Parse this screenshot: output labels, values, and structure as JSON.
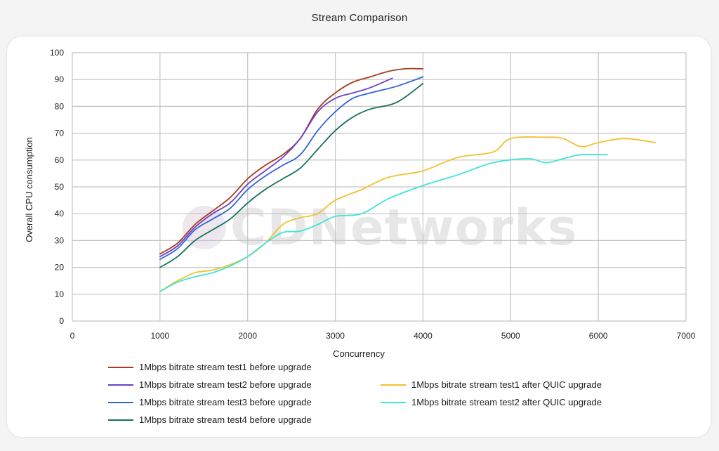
{
  "chart_data": {
    "type": "line",
    "title": "Stream Comparison",
    "xlabel": "Concurrency",
    "ylabel": "Overall CPU consumption",
    "xlim": [
      0,
      7000
    ],
    "ylim": [
      0,
      100
    ],
    "x_ticks": [
      0,
      1000,
      2000,
      3000,
      4000,
      5000,
      6000,
      7000
    ],
    "y_ticks": [
      0,
      10,
      20,
      30,
      40,
      50,
      60,
      70,
      80,
      90,
      100
    ],
    "grid": true,
    "legend_position": "bottom",
    "watermark": "CDNetworks",
    "series": [
      {
        "name": "1Mbps bitrate stream test1 before upgrade",
        "color": "#a83a1e",
        "x": [
          1000,
          1200,
          1400,
          1600,
          1800,
          2000,
          2200,
          2400,
          2600,
          2800,
          3000,
          3200,
          3400,
          3600,
          3800,
          4000
        ],
        "y": [
          25,
          29,
          36,
          41,
          46,
          53,
          58,
          62,
          68,
          79,
          85,
          89,
          91,
          93,
          94,
          94
        ]
      },
      {
        "name": "1Mbps bitrate stream test2 before upgrade",
        "color": "#6b3fc9",
        "x": [
          1000,
          1200,
          1400,
          1600,
          1800,
          2000,
          2200,
          2400,
          2600,
          2800,
          3000,
          3200,
          3400,
          3650
        ],
        "y": [
          24,
          28,
          35,
          40,
          44,
          51,
          56,
          61,
          68,
          78,
          83,
          85,
          87,
          90.5
        ]
      },
      {
        "name": "1Mbps bitrate stream test3 before upgrade",
        "color": "#2f63d8",
        "x": [
          1000,
          1200,
          1400,
          1600,
          1800,
          2000,
          2200,
          2400,
          2600,
          2800,
          3000,
          3200,
          3400,
          3700,
          4000
        ],
        "y": [
          23,
          27,
          34,
          38,
          42,
          49,
          54,
          58,
          62,
          71,
          78,
          83,
          85,
          87.5,
          91
        ]
      },
      {
        "name": "1Mbps bitrate stream test4 before upgrade",
        "color": "#16705c",
        "x": [
          1000,
          1200,
          1400,
          1600,
          1800,
          2000,
          2200,
          2400,
          2600,
          2800,
          3000,
          3200,
          3400,
          3700,
          4000
        ],
        "y": [
          20,
          24,
          30,
          34,
          38,
          44,
          49,
          53,
          57,
          64,
          71,
          76,
          79,
          81.5,
          88.5
        ]
      },
      {
        "name": "1Mbps bitrate stream test1 after QUIC upgrade",
        "color": "#f2c12e",
        "x": [
          1000,
          1200,
          1400,
          1600,
          1800,
          2000,
          2200,
          2400,
          2600,
          2800,
          3000,
          3300,
          3600,
          4000,
          4400,
          4800,
          5000,
          5400,
          5600,
          5800,
          6000,
          6300,
          6650
        ],
        "y": [
          11,
          15,
          18,
          19,
          21,
          24,
          29,
          36,
          38.5,
          40,
          45,
          49,
          53.5,
          56,
          61,
          63,
          68,
          68.5,
          68,
          65,
          66.5,
          68,
          66.5
        ]
      },
      {
        "name": "1Mbps bitrate stream test2 after QUIC upgrade",
        "color": "#3de6d6",
        "x": [
          1000,
          1200,
          1400,
          1600,
          1800,
          2000,
          2200,
          2400,
          2600,
          2800,
          3000,
          3300,
          3600,
          4000,
          4400,
          4800,
          5200,
          5400,
          5600,
          5800,
          6100
        ],
        "y": [
          11,
          14.5,
          16.5,
          18,
          20.5,
          24,
          29,
          33,
          33.5,
          36,
          39,
          40,
          45.5,
          50.5,
          54.5,
          59,
          60.5,
          59,
          60.5,
          62,
          62
        ]
      }
    ]
  }
}
